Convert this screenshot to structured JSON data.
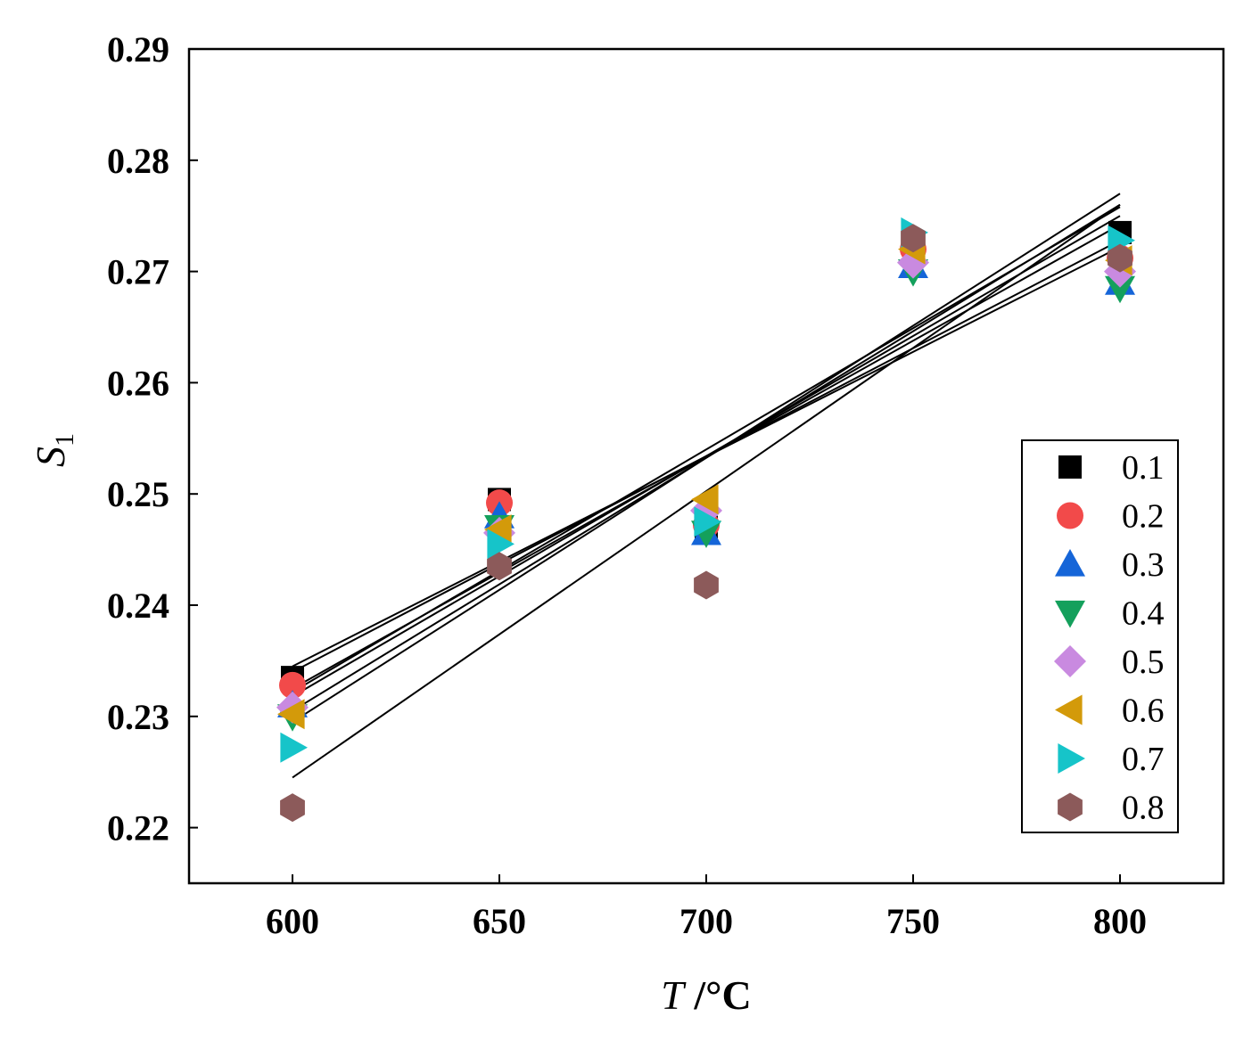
{
  "chart_data": {
    "type": "scatter",
    "title": "",
    "xlabel": {
      "italic": "T",
      "rest": " /°C"
    },
    "ylabel": {
      "italic": "S",
      "sub": "1"
    },
    "xlim": [
      575,
      825
    ],
    "ylim": [
      0.215,
      0.29
    ],
    "x_ticks": [
      600,
      650,
      700,
      750,
      800
    ],
    "x_tick_labels": [
      "600",
      "650",
      "700",
      "750",
      "800"
    ],
    "y_ticks": [
      0.22,
      0.23,
      0.24,
      0.25,
      0.26,
      0.27,
      0.28,
      0.29
    ],
    "y_tick_labels": [
      "0.22",
      "0.23",
      "0.24",
      "0.25",
      "0.26",
      "0.27",
      "0.28",
      "0.29"
    ],
    "grid": false,
    "legend_position": "right",
    "x": [
      600,
      650,
      700,
      750,
      800
    ],
    "series": [
      {
        "name": "0.1",
        "marker": "square",
        "color": "#000000",
        "values": [
          0.2335,
          0.2495,
          0.247,
          0.2725,
          0.2735
        ],
        "fit": [
          0.2345,
          0.2722
        ]
      },
      {
        "name": "0.2",
        "marker": "circle",
        "color": "#f24a4a",
        "values": [
          0.2328,
          0.2492,
          0.2472,
          0.272,
          0.2712
        ],
        "fit": [
          0.234,
          0.2728
        ]
      },
      {
        "name": "0.3",
        "marker": "triangle-up",
        "color": "#1565d8",
        "values": [
          0.231,
          0.248,
          0.2465,
          0.2705,
          0.269
        ],
        "fit": [
          0.2325,
          0.2742
        ]
      },
      {
        "name": "0.4",
        "marker": "triangle-down",
        "color": "#14a05c",
        "values": [
          0.23,
          0.247,
          0.2465,
          0.27,
          0.2685
        ],
        "fit": [
          0.2318,
          0.275
        ]
      },
      {
        "name": "0.5",
        "marker": "diamond",
        "color": "#c98ae0",
        "values": [
          0.2308,
          0.2465,
          0.2485,
          0.2708,
          0.27
        ],
        "fit": [
          0.2322,
          0.2758
        ]
      },
      {
        "name": "0.6",
        "marker": "triangle-left",
        "color": "#d39a0a",
        "values": [
          0.2302,
          0.2468,
          0.2495,
          0.272,
          0.271
        ],
        "fit": [
          0.2305,
          0.276
        ]
      },
      {
        "name": "0.7",
        "marker": "triangle-right",
        "color": "#16c4c9",
        "values": [
          0.2272,
          0.2455,
          0.2475,
          0.2735,
          0.2728
        ],
        "fit": [
          0.2295,
          0.277
        ]
      },
      {
        "name": "0.8",
        "marker": "hexagon",
        "color": "#8c5a5a",
        "values": [
          0.2218,
          0.2435,
          0.2418,
          0.273,
          0.2712
        ],
        "fit": [
          0.2245,
          0.276
        ]
      }
    ]
  }
}
